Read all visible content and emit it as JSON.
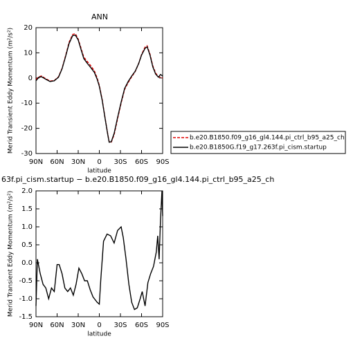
{
  "chart_data": [
    {
      "type": "line",
      "title": "ANN",
      "xlabel": "latitude",
      "ylabel": "Merid Transient Eddy Momentum (m²/s²)",
      "x": [
        90,
        86,
        82,
        76,
        70,
        64,
        58,
        53,
        48,
        43,
        38,
        34,
        30,
        26,
        22,
        17,
        12,
        7,
        3,
        0,
        -4,
        -8,
        -12,
        -14,
        -17,
        -21,
        -26,
        -31,
        -36,
        -41,
        -46,
        -51,
        -56,
        -60,
        -65,
        -68,
        -72,
        -76,
        -80,
        -84,
        -87,
        -90
      ],
      "series": [
        {
          "name": "b.e20.B1850.f09_g16_gl4.144.pi_ctrl_b95_a25_ch",
          "color": "#e00000",
          "dash": true,
          "values": [
            -0.5,
            0.5,
            0.8,
            -0.3,
            -1.2,
            -1.0,
            0.5,
            3.8,
            8.8,
            14.2,
            17.3,
            17.6,
            15.5,
            11.8,
            8.3,
            6.5,
            4.8,
            2.8,
            0.0,
            -2.9,
            -8.5,
            -15.5,
            -22.3,
            -25.3,
            -25.5,
            -22.5,
            -16.2,
            -10.0,
            -4.5,
            -1.8,
            0.5,
            2.5,
            5.8,
            9.3,
            12.3,
            12.8,
            9.5,
            4.8,
            2.0,
            0.5,
            0.3,
            0.0
          ]
        },
        {
          "name": "b.e20.B1850G.f19_g17.263f.pi_cism.startup",
          "color": "#000000",
          "dash": false,
          "values": [
            -1.1,
            0.3,
            0.5,
            -0.5,
            -1.4,
            -1.1,
            0.3,
            3.6,
            8.5,
            13.7,
            16.8,
            17.0,
            15.1,
            11.3,
            7.7,
            5.8,
            4.1,
            2.2,
            -0.5,
            -3.3,
            -8.8,
            -15.7,
            -22.5,
            -25.5,
            -25.3,
            -22.0,
            -15.7,
            -9.6,
            -4.1,
            -1.4,
            0.8,
            2.7,
            5.8,
            9.1,
            11.8,
            12.4,
            9.1,
            4.4,
            1.6,
            0.3,
            1.4,
            0.8
          ]
        }
      ],
      "xlim": [
        90,
        -90
      ],
      "xticks": [
        {
          "value": 90,
          "label": "90N"
        },
        {
          "value": 60,
          "label": "60N"
        },
        {
          "value": 30,
          "label": "30N"
        },
        0,
        {
          "value": -30,
          "label": "30S"
        },
        {
          "value": -60,
          "label": "60S"
        },
        {
          "value": -90,
          "label": "90S"
        }
      ],
      "ylim": [
        -30,
        20
      ],
      "yticks": [
        -30,
        -20,
        -10,
        0,
        10,
        20
      ],
      "legend": "right"
    },
    {
      "type": "line",
      "title": "63f.pi_cism.startup − b.e20.B1850.f09_g16_gl4.144.pi_ctrl_b95_a25_ch",
      "xlabel": "latitude",
      "ylabel": "Merid Transient Eddy Momentum (m²/s²)",
      "x": [
        90,
        88,
        84,
        80,
        76,
        72,
        68,
        64,
        60,
        57,
        53,
        49,
        45,
        41,
        37,
        33,
        29,
        25,
        21,
        17,
        13,
        9,
        3,
        0,
        -2,
        -6,
        -11,
        -16,
        -21,
        -26,
        -31,
        -34,
        -38,
        -42,
        -46,
        -50,
        -54,
        -58,
        -61,
        -65,
        -69,
        -73,
        -77,
        -81,
        -83,
        -85,
        -87,
        -89,
        -90
      ],
      "series": [
        {
          "color": "#000000",
          "dash": false,
          "values": [
            -1.2,
            0.1,
            -0.3,
            -0.6,
            -0.7,
            -1.0,
            -0.7,
            -0.8,
            -0.05,
            -0.05,
            -0.3,
            -0.7,
            -0.8,
            -0.7,
            -0.9,
            -0.6,
            -0.15,
            -0.3,
            -0.5,
            -0.5,
            -0.75,
            -0.95,
            -1.1,
            -1.15,
            -0.5,
            0.6,
            0.8,
            0.75,
            0.55,
            0.9,
            1.0,
            0.7,
            0.1,
            -0.6,
            -1.1,
            -1.3,
            -1.25,
            -1.0,
            -0.8,
            -1.2,
            -0.55,
            -0.3,
            -0.1,
            0.3,
            0.75,
            0.1,
            1.2,
            2.0,
            1.3
          ]
        }
      ],
      "xlim": [
        90,
        -90
      ],
      "xticks": [
        {
          "value": 90,
          "label": "90N"
        },
        {
          "value": 60,
          "label": "60N"
        },
        {
          "value": 30,
          "label": "30N"
        },
        0,
        {
          "value": -30,
          "label": "30S"
        },
        {
          "value": -60,
          "label": "60S"
        },
        {
          "value": -90,
          "label": "90S"
        }
      ],
      "ylim": [
        -1.5,
        2.0
      ],
      "yticks": [
        -1.5,
        {
          "value": -1.0,
          "label": "-1.0"
        },
        -0.5,
        {
          "value": 0.0,
          "label": "0.0"
        },
        0.5,
        {
          "value": 1.0,
          "label": "1.0"
        },
        1.5,
        {
          "value": 2.0,
          "label": "2.0"
        }
      ]
    }
  ]
}
